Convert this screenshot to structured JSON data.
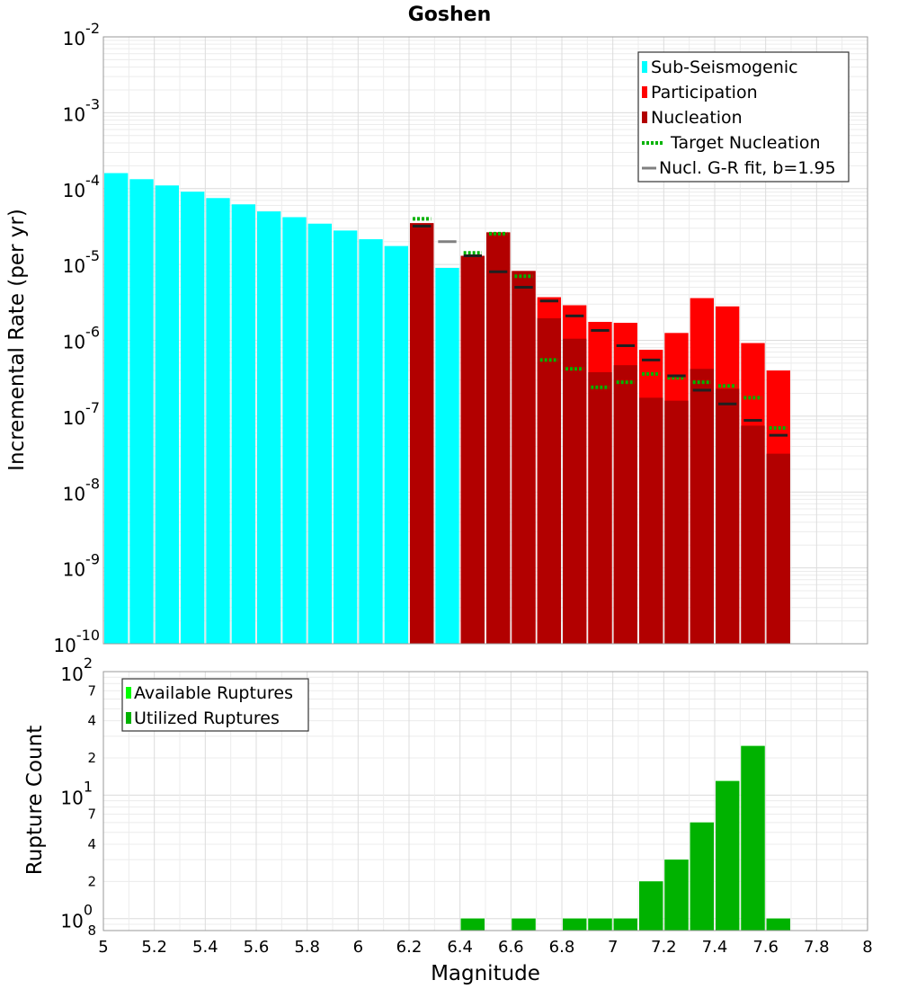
{
  "chart_data": [
    {
      "type": "bar",
      "title": "Goshen",
      "ylabel": "Incremental Rate (per yr)",
      "xlabel": "",
      "yscale": "log",
      "ylim": [
        1e-10,
        0.01
      ],
      "xlim": [
        5.0,
        8.0
      ],
      "bin_width": 0.1,
      "y_tick_labels": [
        {
          "base": "10",
          "exp": "-2"
        },
        {
          "base": "10",
          "exp": "-3"
        },
        {
          "base": "10",
          "exp": "-4"
        },
        {
          "base": "10",
          "exp": "-5"
        },
        {
          "base": "10",
          "exp": "-6"
        },
        {
          "base": "10",
          "exp": "-7"
        },
        {
          "base": "10",
          "exp": "-8"
        },
        {
          "base": "10",
          "exp": "-9"
        },
        {
          "base": "10",
          "exp": "-10"
        }
      ],
      "legend": {
        "position": "top-right",
        "entries": [
          {
            "label": "Sub-Seismogenic",
            "color": "#00ffff",
            "style": "bar"
          },
          {
            "label": "Participation",
            "color": "#ff0000",
            "style": "bar"
          },
          {
            "label": "Nucleation",
            "color": "#b20000",
            "style": "bar"
          },
          {
            "label": "Target Nucleation",
            "color": "#00b200",
            "style": "dotted"
          },
          {
            "label": "Nucl. G-R fit, b=1.95",
            "color": "#808080",
            "style": "line"
          }
        ]
      },
      "series": [
        {
          "name": "Sub-Seismogenic",
          "color": "#00ffff",
          "x": [
            5.05,
            5.15,
            5.25,
            5.35,
            5.45,
            5.55,
            5.65,
            5.75,
            5.85,
            5.95,
            6.05,
            6.15,
            6.35
          ],
          "values": [
            0.00016,
            0.000133,
            0.00011,
            9.1e-05,
            7.5e-05,
            6.2e-05,
            5e-05,
            4.2e-05,
            3.45e-05,
            2.8e-05,
            2.15e-05,
            1.75e-05,
            9e-06
          ]
        },
        {
          "name": "Participation",
          "color": "#ff0000",
          "x": [
            6.25,
            6.45,
            6.55,
            6.65,
            6.75,
            6.85,
            6.95,
            7.05,
            7.15,
            7.25,
            7.35,
            7.45,
            7.55,
            7.65
          ],
          "values": [
            3.5e-05,
            1.3e-05,
            2.65e-05,
            8.2e-06,
            3.7e-06,
            2.9e-06,
            1.75e-06,
            1.7e-06,
            7.5e-07,
            1.25e-06,
            3.6e-06,
            2.8e-06,
            9.2e-07,
            4e-07
          ]
        },
        {
          "name": "Nucleation",
          "color": "#b20000",
          "x": [
            6.25,
            6.45,
            6.55,
            6.65,
            6.75,
            6.85,
            6.95,
            7.05,
            7.15,
            7.25,
            7.35,
            7.45,
            7.55,
            7.65
          ],
          "values": [
            3.5e-05,
            1.3e-05,
            2.65e-05,
            8.2e-06,
            1.95e-06,
            1.05e-06,
            3.8e-07,
            4.7e-07,
            1.75e-07,
            1.6e-07,
            4.2e-07,
            2.3e-07,
            7.5e-08,
            3.2e-08
          ]
        },
        {
          "name": "Target Nucleation",
          "color": "#00b200",
          "style": "dotted",
          "x": [
            6.25,
            6.45,
            6.55,
            6.65,
            6.75,
            6.85,
            6.95,
            7.05,
            7.15,
            7.25,
            7.35,
            7.45,
            7.55,
            7.65
          ],
          "values": [
            4e-05,
            1.42e-05,
            2.55e-05,
            7e-06,
            5.5e-07,
            4.2e-07,
            2.4e-07,
            2.8e-07,
            3.6e-07,
            3.2e-07,
            2.8e-07,
            2.5e-07,
            1.75e-07,
            7e-08
          ]
        },
        {
          "name": "Nucl. G-R fit, b=1.95",
          "color": "#808080",
          "x": [
            6.35
          ],
          "values": [
            2e-05
          ]
        },
        {
          "name": "Nucl. G-R fit, b=1.95",
          "color": "#202020",
          "x": [
            6.25,
            6.45,
            6.55,
            6.65,
            6.75,
            6.85,
            6.95,
            7.05,
            7.15,
            7.25,
            7.35,
            7.45,
            7.55,
            7.65
          ],
          "values": [
            3.2e-05,
            1.3e-05,
            8e-06,
            5e-06,
            3.3e-06,
            2.1e-06,
            1.35e-06,
            8.5e-07,
            5.5e-07,
            3.4e-07,
            2.2e-07,
            1.45e-07,
            8.8e-08,
            5.6e-08
          ]
        }
      ]
    },
    {
      "type": "bar",
      "title": "",
      "xlabel": "Magnitude",
      "ylabel": "Rupture Count",
      "yscale": "log",
      "ylim": [
        0.8,
        100
      ],
      "xlim": [
        5.0,
        8.0
      ],
      "x_ticks": [
        5,
        5.2,
        5.4,
        5.6,
        5.8,
        6,
        6.2,
        6.4,
        6.6,
        6.8,
        7,
        7.2,
        7.4,
        7.6,
        7.8,
        8
      ],
      "x_tick_labels": [
        "5",
        "5.2",
        "5.4",
        "5.6",
        "5.8",
        "6",
        "6.2",
        "6.4",
        "6.6",
        "6.8",
        "7",
        "7.2",
        "7.4",
        "7.6",
        "7.8",
        "8"
      ],
      "y_tick_labels": [
        {
          "base": "10",
          "exp": "2"
        },
        {
          "base": "10",
          "exp": "1"
        },
        {
          "base": "10",
          "exp": "0"
        }
      ],
      "y_minor_labels": [
        {
          "value": 70,
          "label": "7"
        },
        {
          "value": 40,
          "label": "4"
        },
        {
          "value": 20,
          "label": "2"
        },
        {
          "value": 7,
          "label": "7"
        },
        {
          "value": 4,
          "label": "4"
        },
        {
          "value": 2,
          "label": "2"
        },
        {
          "value": 0.8,
          "label": "8"
        }
      ],
      "legend": {
        "position": "top-left",
        "entries": [
          {
            "label": "Available Ruptures",
            "color": "#00ff00"
          },
          {
            "label": "Utilized Ruptures",
            "color": "#00b200"
          }
        ]
      },
      "series": [
        {
          "name": "Available Ruptures",
          "color": "#00ff00",
          "x": [
            6.45,
            6.65,
            6.85,
            6.95,
            7.05,
            7.15,
            7.25,
            7.35,
            7.45,
            7.55,
            7.65
          ],
          "values": [
            1,
            1,
            1,
            1,
            1,
            2,
            3,
            6,
            13,
            25,
            1
          ]
        },
        {
          "name": "Utilized Ruptures",
          "color": "#00b200",
          "x": [
            6.45,
            6.65,
            6.85,
            6.95,
            7.05,
            7.15,
            7.25,
            7.35,
            7.45,
            7.55,
            7.65
          ],
          "values": [
            1,
            1,
            1,
            1,
            1,
            2,
            3,
            6,
            13,
            25,
            1
          ]
        }
      ]
    }
  ]
}
